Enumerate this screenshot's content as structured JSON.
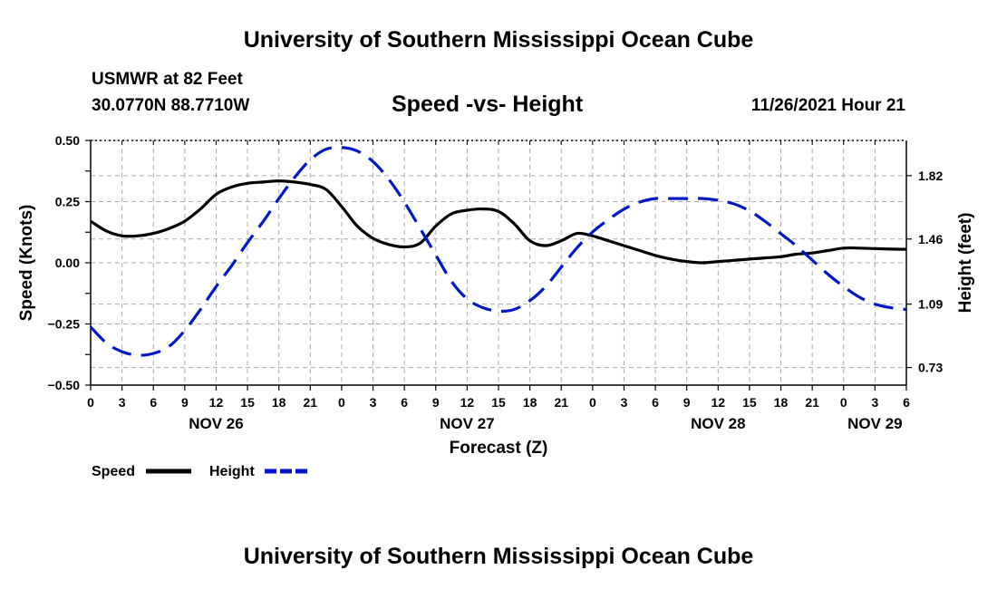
{
  "header": {
    "title": "University of Southern Mississippi Ocean Cube",
    "station": "USMWR at 82 Feet",
    "coords": "30.0770N  88.7710W",
    "subtitle": "Speed -vs- Height",
    "datetime": "11/26/2021 Hour 21"
  },
  "footer": {
    "title": "University of Southern Mississippi Ocean Cube"
  },
  "colors": {
    "speed": "#000000",
    "height": "#0018c8",
    "grid": "#aaaaaa"
  },
  "chart_data": {
    "type": "line",
    "title": "Speed -vs- Height",
    "xlabel": "Forecast (Z)",
    "ylabel_left": "Speed (Knots)",
    "ylabel_right": "Height (feet)",
    "x_unit": "hours from NOV 26 00Z",
    "xlim": [
      0,
      78
    ],
    "ylim_left": [
      -0.5,
      0.5
    ],
    "ylim_right": [
      0.63,
      2.02
    ],
    "x_ticks": [
      0,
      3,
      6,
      9,
      12,
      15,
      18,
      21,
      24,
      27,
      30,
      33,
      36,
      39,
      42,
      45,
      48,
      51,
      54,
      57,
      60,
      63,
      66,
      69,
      72,
      75,
      78
    ],
    "x_tick_labels": [
      "0",
      "3",
      "6",
      "9",
      "12",
      "15",
      "18",
      "21",
      "0",
      "3",
      "6",
      "9",
      "12",
      "15",
      "18",
      "21",
      "0",
      "3",
      "6",
      "9",
      "12",
      "15",
      "18",
      "21",
      "0",
      "3",
      "6"
    ],
    "y_ticks_left": [
      0.5,
      0.25,
      0.0,
      -0.25,
      -0.5
    ],
    "y_tick_labels_left": [
      "0.50",
      "0.25",
      "0.00",
      "−0.25",
      "−0.50"
    ],
    "y_ticks_right": [
      1.82,
      1.46,
      1.09,
      0.73
    ],
    "y_tick_labels_right": [
      "1.82",
      "1.46",
      "1.09",
      "0.73"
    ],
    "date_labels": [
      {
        "label": "NOV 26",
        "x": 12
      },
      {
        "label": "NOV 27",
        "x": 36
      },
      {
        "label": "NOV 28",
        "x": 60
      },
      {
        "label": "NOV 29",
        "x": 75
      }
    ],
    "grid": true,
    "series": [
      {
        "name": "Speed",
        "style": "solid",
        "axis": "left",
        "x": [
          0,
          1.5,
          3,
          4.5,
          6,
          7.5,
          9,
          10.5,
          12,
          13.5,
          15,
          16.5,
          18,
          19.5,
          21,
          22.5,
          24,
          25.5,
          27,
          28.5,
          30,
          31.5,
          33,
          34.5,
          36,
          37.5,
          39,
          40.5,
          42,
          43.5,
          45,
          46.5,
          48,
          49.5,
          51,
          52.5,
          54,
          55.5,
          57,
          58.5,
          60,
          61.5,
          63,
          64.5,
          66,
          67.5,
          69,
          70.5,
          72,
          73.5,
          75,
          76.5,
          78
        ],
        "values": [
          0.17,
          0.13,
          0.11,
          0.11,
          0.12,
          0.14,
          0.17,
          0.22,
          0.28,
          0.31,
          0.325,
          0.33,
          0.335,
          0.33,
          0.32,
          0.3,
          0.23,
          0.15,
          0.1,
          0.075,
          0.065,
          0.08,
          0.15,
          0.2,
          0.215,
          0.22,
          0.21,
          0.16,
          0.09,
          0.07,
          0.09,
          0.12,
          0.11,
          0.09,
          0.07,
          0.05,
          0.03,
          0.015,
          0.005,
          0.0,
          0.005,
          0.01,
          0.015,
          0.02,
          0.025,
          0.035,
          0.04,
          0.05,
          0.06,
          0.06,
          0.058,
          0.056,
          0.055
        ]
      },
      {
        "name": "Height",
        "style": "dashed",
        "axis": "right",
        "x": [
          0,
          1.5,
          3,
          4.5,
          6,
          7.5,
          9,
          10.5,
          12,
          13.5,
          15,
          16.5,
          18,
          19.5,
          21,
          22.5,
          24,
          25.5,
          27,
          28.5,
          30,
          31.5,
          33,
          34.5,
          36,
          37.5,
          39,
          40.5,
          42,
          43.5,
          45,
          46.5,
          48,
          49.5,
          51,
          52.5,
          54,
          55.5,
          57,
          58.5,
          60,
          61.5,
          63,
          64.5,
          66,
          67.5,
          69,
          70.5,
          72,
          73.5,
          75,
          76.5,
          78
        ],
        "values": [
          0.96,
          0.87,
          0.82,
          0.8,
          0.81,
          0.85,
          0.94,
          1.06,
          1.19,
          1.31,
          1.44,
          1.56,
          1.69,
          1.81,
          1.91,
          1.97,
          1.98,
          1.96,
          1.9,
          1.8,
          1.67,
          1.52,
          1.37,
          1.22,
          1.12,
          1.07,
          1.05,
          1.06,
          1.11,
          1.19,
          1.3,
          1.41,
          1.5,
          1.57,
          1.63,
          1.67,
          1.69,
          1.69,
          1.69,
          1.69,
          1.68,
          1.66,
          1.62,
          1.56,
          1.49,
          1.42,
          1.34,
          1.26,
          1.19,
          1.13,
          1.09,
          1.07,
          1.06
        ]
      }
    ]
  },
  "legend": [
    {
      "label": "Speed"
    },
    {
      "label": "Height"
    }
  ]
}
